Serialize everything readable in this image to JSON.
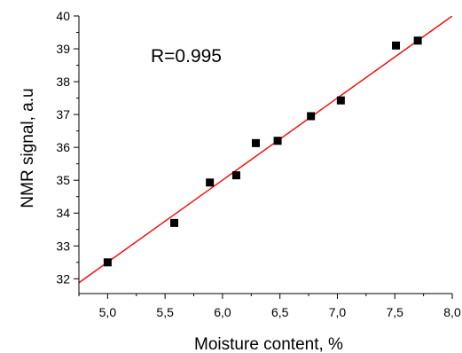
{
  "chart_data": {
    "type": "scatter",
    "xlabel": "Moisture content, %",
    "ylabel": "NMR signal, a.u",
    "annotation": "R=0.995",
    "xlim": [
      4.75,
      8.0
    ],
    "ylim": [
      31.55,
      40.0
    ],
    "x_ticks": [
      "5,0",
      "5,5",
      "6,0",
      "6,5",
      "7,0",
      "7,5",
      "8,0"
    ],
    "x_tick_values": [
      5.0,
      5.5,
      6.0,
      6.5,
      7.0,
      7.5,
      8.0
    ],
    "y_ticks": [
      "32",
      "33",
      "34",
      "35",
      "36",
      "37",
      "38",
      "39",
      "40"
    ],
    "y_tick_values": [
      32,
      33,
      34,
      35,
      36,
      37,
      38,
      39,
      40
    ],
    "points": {
      "x": [
        5.0,
        5.58,
        5.89,
        6.12,
        6.29,
        6.48,
        6.77,
        7.03,
        7.51,
        7.7
      ],
      "y": [
        32.5,
        33.7,
        34.93,
        35.15,
        36.13,
        36.2,
        36.95,
        37.43,
        39.1,
        39.25
      ]
    },
    "fit_line": {
      "x": [
        4.75,
        8.0
      ],
      "y": [
        31.88,
        40.0
      ]
    },
    "colors": {
      "points": "#000000",
      "fit_line": "#ff0000",
      "axes": "#000000"
    },
    "grid": false,
    "legend": "none"
  }
}
